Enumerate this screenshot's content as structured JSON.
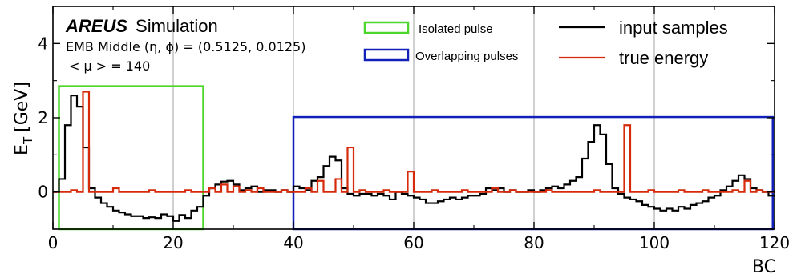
{
  "chart_data": {
    "type": "line",
    "drawstyle": "step",
    "xlabel": "BC",
    "ylabel_main": "E",
    "ylabel_sub": "T",
    "ylabel_unit": "[GeV]",
    "xlim": [
      0,
      120
    ],
    "ylim": [
      -1,
      5
    ],
    "xticks": [
      0,
      20,
      40,
      60,
      80,
      100,
      120
    ],
    "yticks": [
      0,
      2,
      4
    ],
    "vgrid": [
      20,
      40,
      60,
      80,
      100
    ],
    "grid": "vertical only",
    "legend_placement": "top-right",
    "annotations": {
      "brand": "AREUS",
      "simulation": "Simulation",
      "region": "EMB Middle (η, ϕ) = (0.5125, 0.0125)",
      "pileup": "< μ > = 140"
    },
    "series": [
      {
        "name": "input samples",
        "color": "#000000",
        "values": [
          0.0,
          0.35,
          1.8,
          2.6,
          2.3,
          1.2,
          0.1,
          -0.15,
          -0.3,
          -0.4,
          -0.5,
          -0.55,
          -0.6,
          -0.65,
          -0.65,
          -0.7,
          -0.68,
          -0.7,
          -0.6,
          -0.65,
          -0.78,
          -0.62,
          -0.7,
          -0.5,
          -0.4,
          -0.1,
          0.1,
          0.2,
          0.28,
          0.3,
          0.2,
          0.05,
          0.1,
          0.15,
          0.0,
          0.05,
          0.05,
          0.0,
          0.05,
          0.0,
          0.15,
          0.1,
          0.05,
          0.3,
          0.4,
          0.7,
          0.95,
          0.85,
          0.1,
          -0.05,
          -0.1,
          -0.05,
          -0.05,
          -0.1,
          -0.05,
          -0.1,
          -0.2,
          0.0,
          -0.05,
          -0.1,
          -0.15,
          -0.2,
          -0.3,
          -0.3,
          -0.25,
          -0.2,
          -0.15,
          -0.2,
          -0.15,
          -0.1,
          -0.1,
          -0.05,
          0.1,
          0.05,
          0.1,
          0.0,
          0.05,
          0.0,
          0.0,
          0.05,
          0.0,
          0.05,
          0.1,
          0.15,
          0.1,
          0.2,
          0.3,
          0.4,
          0.9,
          1.35,
          1.8,
          1.55,
          0.75,
          0.1,
          -0.05,
          -0.15,
          -0.2,
          -0.25,
          -0.35,
          -0.4,
          -0.45,
          -0.5,
          -0.45,
          -0.5,
          -0.4,
          -0.45,
          -0.35,
          -0.3,
          -0.25,
          -0.15,
          -0.1,
          0.05,
          0.15,
          0.3,
          0.45,
          0.35,
          0.1,
          0.05,
          0.0,
          -0.1
        ],
        "cap": 0.1
      },
      {
        "name": "true energy",
        "color": "#d62a0a",
        "values": [
          0.0,
          0.0,
          0.0,
          0.05,
          0.0,
          2.7,
          0.0,
          0.0,
          0.0,
          0.0,
          0.1,
          0.0,
          0.0,
          0.0,
          0.0,
          0.0,
          0.05,
          0.0,
          0.0,
          0.0,
          0.0,
          0.0,
          0.05,
          0.0,
          0.0,
          0.0,
          0.1,
          0.0,
          0.2,
          0.0,
          0.15,
          0.0,
          0.05,
          0.0,
          0.1,
          0.0,
          0.0,
          0.0,
          0.05,
          0.0,
          0.0,
          0.0,
          0.1,
          0.0,
          0.3,
          0.0,
          0.0,
          0.35,
          0.0,
          1.2,
          0.0,
          0.05,
          0.0,
          0.0,
          0.0,
          0.05,
          0.0,
          0.0,
          0.0,
          0.55,
          0.0,
          0.0,
          0.0,
          0.05,
          0.0,
          0.0,
          0.0,
          0.0,
          0.05,
          0.0,
          0.0,
          0.0,
          0.0,
          0.1,
          0.0,
          0.0,
          0.05,
          0.0,
          0.0,
          0.0,
          0.0,
          0.0,
          0.05,
          0.0,
          0.0,
          0.0,
          0.0,
          0.0,
          0.0,
          0.0,
          0.05,
          0.0,
          0.0,
          0.0,
          0.0,
          1.8,
          0.0,
          0.0,
          0.0,
          0.05,
          0.0,
          0.0,
          0.0,
          0.0,
          0.05,
          0.0,
          0.0,
          0.0,
          0.05,
          0.0,
          0.0,
          0.0,
          0.0,
          0.05,
          0.0,
          0.3,
          0.0,
          0.05,
          0.0,
          0.0
        ]
      }
    ],
    "regions": [
      {
        "name": "Isolated pulse",
        "color": "#4cd62b",
        "x": [
          1,
          25
        ],
        "y": [
          -1,
          2.85
        ]
      },
      {
        "name": "Overlapping pulses",
        "color": "#1020b8",
        "x": [
          40,
          119.7
        ],
        "y": [
          -1,
          2.02
        ]
      }
    ]
  }
}
